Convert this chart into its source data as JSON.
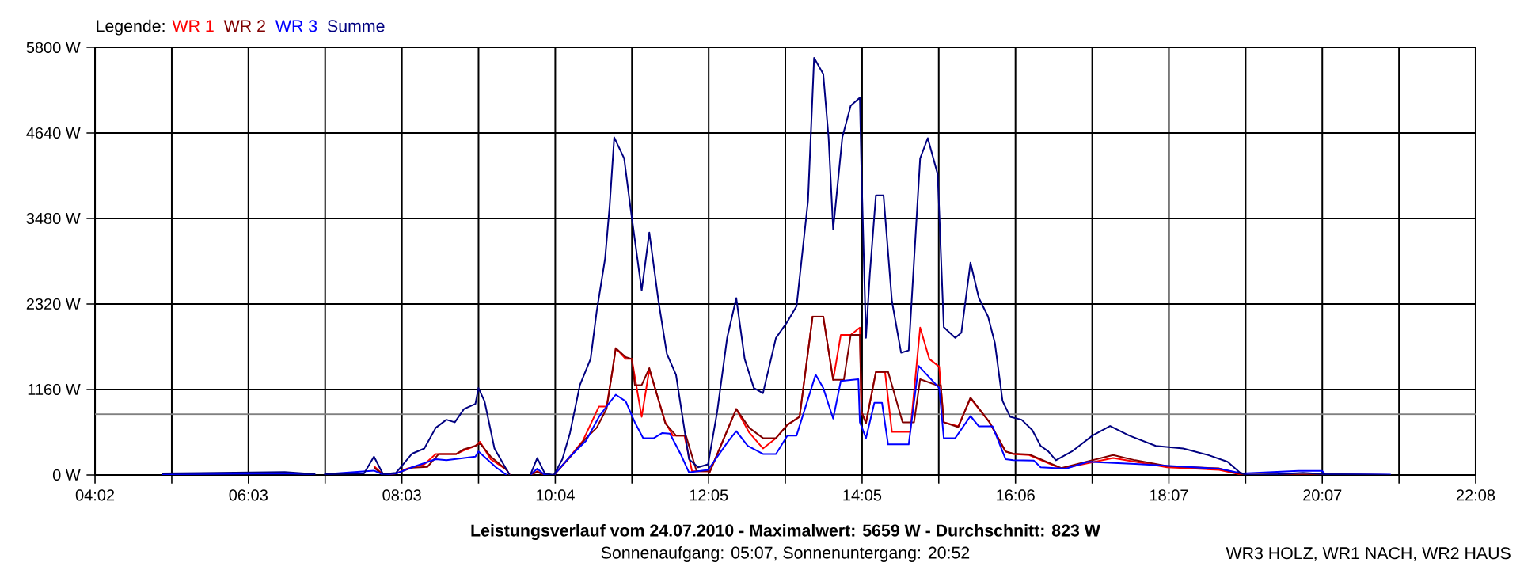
{
  "chart_data": {
    "type": "line",
    "title": "Leistungsverlauf vom 24.07.2010 - Maximalwert: 5659 W - Durchschnitt: 823 W",
    "subtitle": "Sonnenaufgang: 05:07, Sonnenuntergang: 20:52",
    "annotations": [
      "WR3 HOLZ, WR1 NACH, WR2 HAUS"
    ],
    "legend_title": "Legende:",
    "legend": "top left",
    "grid": true,
    "xlim": [
      4.033,
      22.133
    ],
    "ylim": [
      0,
      5800
    ],
    "xticks": [
      {
        "value": 4.033,
        "label": "04:02"
      },
      {
        "value": 5.039,
        "label": null
      },
      {
        "value": 6.044,
        "label": "06:03"
      },
      {
        "value": 7.05,
        "label": null
      },
      {
        "value": 8.056,
        "label": "08:03"
      },
      {
        "value": 9.061,
        "label": null
      },
      {
        "value": 10.067,
        "label": "10:04"
      },
      {
        "value": 11.072,
        "label": null
      },
      {
        "value": 12.078,
        "label": "12:05"
      },
      {
        "value": 13.083,
        "label": null
      },
      {
        "value": 14.089,
        "label": "14:05"
      },
      {
        "value": 15.094,
        "label": null
      },
      {
        "value": 16.1,
        "label": "16:06"
      },
      {
        "value": 17.106,
        "label": null
      },
      {
        "value": 18.111,
        "label": "18:07"
      },
      {
        "value": 19.117,
        "label": null
      },
      {
        "value": 20.122,
        "label": "20:07"
      },
      {
        "value": 21.128,
        "label": null
      },
      {
        "value": 22.133,
        "label": "22:08"
      }
    ],
    "yticks": [
      {
        "value": 0,
        "label": "0 W"
      },
      {
        "value": 1160,
        "label": "1160 W"
      },
      {
        "value": 2320,
        "label": "2320 W"
      },
      {
        "value": 3480,
        "label": "3480 W"
      },
      {
        "value": 4640,
        "label": "4640 W"
      },
      {
        "value": 5800,
        "label": "5800 W"
      }
    ],
    "ref_lines": [
      {
        "axis": "y",
        "value": 823,
        "color": "#808080"
      }
    ],
    "series": [
      {
        "name": "WR 1",
        "color": "#ff0000",
        "x": [
          7.69,
          7.81,
          7.98,
          8.12,
          8.35,
          8.5,
          8.77,
          8.87,
          9.02,
          9.08,
          9.22,
          9.43,
          9.47,
          9.6,
          9.74,
          9.83,
          9.93,
          10.05,
          10.26,
          10.43,
          10.64,
          10.74,
          10.82,
          10.86,
          10.99,
          11.07,
          11.2,
          11.3,
          11.51,
          11.61,
          11.76,
          11.86,
          12.07,
          12.09,
          12.44,
          12.61,
          12.79,
          12.96,
          13.11,
          13.27,
          13.44,
          13.58,
          13.71,
          13.81,
          13.94,
          14.06,
          14.08,
          14.14,
          14.27,
          14.39,
          14.48,
          14.72,
          14.85,
          14.97,
          15.1,
          15.16,
          15.35,
          15.51,
          15.76,
          15.97,
          16.07,
          16.28,
          16.7,
          17.38,
          17.67,
          18.09,
          18.77,
          19.08,
          20.16,
          21.02
        ],
        "values": [
          120,
          5,
          20,
          85,
          145,
          285,
          285,
          335,
          395,
          450,
          215,
          70,
          0,
          null,
          0,
          50,
          0,
          0,
          250,
          465,
          930,
          930,
          1430,
          1720,
          1575,
          1575,
          790,
          1430,
          715,
          535,
          535,
          50,
          50,
          35,
          895,
          575,
          360,
          500,
          680,
          790,
          2150,
          2150,
          1290,
          1900,
          1900,
          2000,
          860,
          715,
          1395,
          1395,
          585,
          585,
          2000,
          1575,
          1470,
          715,
          660,
          1040,
          715,
          320,
          285,
          270,
          85,
          230,
          180,
          105,
          70,
          0,
          5,
          0
        ]
      },
      {
        "name": "WR 2",
        "color": "#800000",
        "x": [
          7.69,
          7.81,
          7.98,
          8.19,
          8.39,
          8.54,
          8.77,
          8.87,
          9.02,
          9.08,
          9.22,
          9.43,
          9.47,
          9.6,
          9.74,
          9.83,
          9.93,
          10.05,
          10.26,
          10.47,
          10.61,
          10.74,
          10.86,
          10.99,
          11.07,
          11.11,
          11.2,
          11.3,
          11.51,
          11.65,
          11.78,
          11.92,
          12.07,
          12.09,
          12.44,
          12.61,
          12.79,
          12.96,
          13.11,
          13.27,
          13.44,
          13.58,
          13.71,
          13.85,
          13.94,
          14.06,
          14.08,
          14.14,
          14.27,
          14.43,
          14.62,
          14.77,
          14.85,
          15.06,
          15.12,
          15.16,
          15.35,
          15.51,
          15.76,
          15.97,
          16.07,
          16.28,
          16.7,
          17.38,
          17.67,
          18.09,
          18.77,
          19.08,
          20.16,
          21.02
        ],
        "values": [
          100,
          5,
          20,
          100,
          110,
          285,
          285,
          350,
          395,
          430,
          250,
          70,
          0,
          null,
          0,
          40,
          0,
          0,
          240,
          500,
          640,
          900,
          1720,
          1600,
          1575,
          1220,
          1220,
          1450,
          700,
          535,
          535,
          50,
          50,
          35,
          895,
          640,
          500,
          500,
          680,
          790,
          2150,
          2150,
          1290,
          1290,
          1900,
          1900,
          860,
          700,
          1400,
          1400,
          715,
          715,
          1300,
          1220,
          1220,
          715,
          650,
          1050,
          715,
          320,
          290,
          280,
          95,
          270,
          200,
          120,
          90,
          5,
          5,
          0
        ]
      },
      {
        "name": "WR 3",
        "color": "#0000ff",
        "x": [
          4.91,
          6.52,
          6.92,
          7.0,
          7.04,
          7.69,
          7.81,
          7.98,
          8.19,
          8.5,
          8.64,
          9.02,
          9.06,
          9.29,
          9.43,
          9.6,
          9.74,
          9.83,
          9.93,
          10.05,
          10.26,
          10.47,
          10.64,
          10.74,
          10.86,
          10.99,
          11.11,
          11.22,
          11.36,
          11.47,
          11.57,
          11.71,
          11.82,
          12.07,
          12.34,
          12.44,
          12.59,
          12.79,
          12.96,
          13.11,
          13.23,
          13.48,
          13.58,
          13.71,
          13.81,
          14.04,
          14.06,
          14.14,
          14.25,
          14.35,
          14.43,
          14.7,
          14.83,
          14.97,
          15.1,
          15.16,
          15.31,
          15.51,
          15.62,
          15.8,
          15.97,
          16.07,
          16.34,
          16.43,
          16.76,
          17.05,
          17.67,
          18.77,
          19.08,
          19.81,
          20.12,
          20.16,
          21.02
        ],
        "values": [
          10,
          20,
          10,
          null,
          10,
          60,
          5,
          20,
          105,
          215,
          200,
          250,
          320,
          105,
          0,
          null,
          0,
          85,
          0,
          0,
          250,
          465,
          790,
          930,
          1090,
          1000,
          715,
          500,
          500,
          570,
          560,
          285,
          35,
          70,
          465,
          595,
          395,
          285,
          285,
          535,
          535,
          1360,
          1180,
          765,
          1275,
          1300,
          715,
          500,
          980,
          980,
          415,
          415,
          1480,
          1325,
          1180,
          500,
          500,
          800,
          660,
          660,
          215,
          200,
          195,
          105,
          85,
          180,
          150,
          85,
          20,
          55,
          55,
          10,
          5
        ]
      },
      {
        "name": "Summe",
        "color": "#000080",
        "x": [
          4.91,
          6.52,
          6.92,
          7.0,
          7.04,
          7.56,
          7.69,
          7.81,
          7.98,
          8.19,
          8.35,
          8.5,
          8.64,
          8.75,
          8.87,
          9.02,
          9.06,
          9.14,
          9.27,
          9.43,
          9.47,
          9.6,
          9.74,
          9.83,
          9.93,
          10.05,
          10.16,
          10.26,
          10.39,
          10.53,
          10.61,
          10.72,
          10.78,
          10.84,
          10.97,
          11.05,
          11.2,
          11.3,
          11.42,
          11.53,
          11.65,
          11.82,
          11.94,
          12.07,
          12.19,
          12.32,
          12.44,
          12.55,
          12.67,
          12.79,
          12.96,
          13.11,
          13.23,
          13.38,
          13.46,
          13.58,
          13.65,
          13.71,
          13.83,
          13.94,
          14.06,
          14.08,
          14.14,
          14.19,
          14.27,
          14.37,
          14.48,
          14.6,
          14.7,
          14.85,
          14.95,
          15.08,
          15.1,
          15.16,
          15.31,
          15.39,
          15.51,
          15.62,
          15.74,
          15.83,
          15.93,
          16.03,
          16.18,
          16.32,
          16.43,
          16.53,
          16.63,
          16.84,
          17.11,
          17.34,
          17.59,
          17.94,
          18.3,
          18.63,
          18.88,
          19.04,
          19.13,
          19.54,
          19.87,
          20.16,
          21.02
        ],
        "values": [
          20,
          40,
          10,
          null,
          10,
          20,
          250,
          10,
          30,
          290,
          360,
          640,
          750,
          715,
          895,
          965,
          1180,
          1000,
          360,
          70,
          0,
          null,
          0,
          230,
          20,
          0,
          215,
          570,
          1220,
          1575,
          2220,
          2935,
          3650,
          4580,
          4295,
          3650,
          2505,
          3290,
          2360,
          1645,
          1360,
          215,
          105,
          145,
          860,
          1860,
          2400,
          1575,
          1180,
          1110,
          1860,
          2080,
          2290,
          3720,
          5659,
          5440,
          4580,
          3330,
          4580,
          5010,
          5120,
          4150,
          1860,
          2720,
          3795,
          3795,
          2360,
          1660,
          1690,
          4295,
          4570,
          4080,
          3580,
          2005,
          1860,
          1930,
          2880,
          2400,
          2150,
          1790,
          1005,
          790,
          750,
          610,
          395,
          320,
          200,
          320,
          535,
          665,
          535,
          395,
          360,
          270,
          180,
          35,
          0,
          10,
          30,
          10,
          0
        ]
      }
    ]
  }
}
